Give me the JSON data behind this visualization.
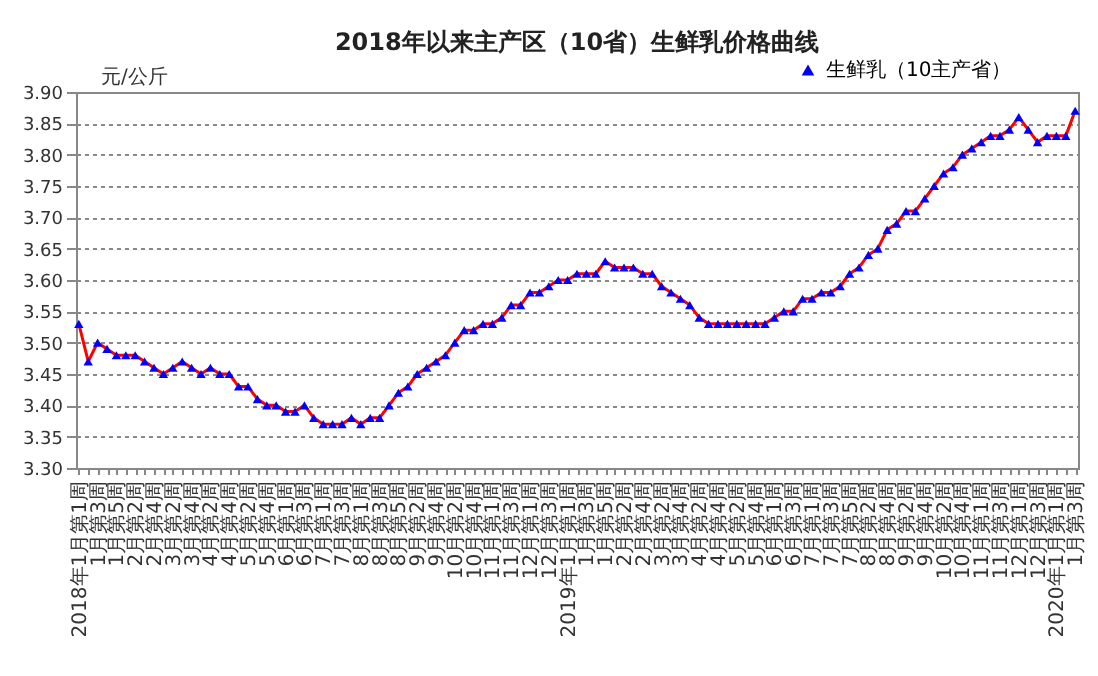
{
  "chart_data": {
    "type": "line",
    "title": "2018年以来主产区（10省）生鲜乳价格曲线",
    "ylabel": "元/公斤",
    "categories": [
      "2018年1月第1周",
      null,
      "1月第3周",
      null,
      "1月第5周",
      null,
      "2月第2周",
      null,
      "2月第4周",
      null,
      "3月第2周",
      null,
      "3月第4周",
      null,
      "4月第2周",
      null,
      "4月第4周",
      null,
      "5月第2周",
      null,
      "5月第4周",
      null,
      "6月第1周",
      null,
      "6月第3周",
      null,
      "7月第1周",
      null,
      "7月第3周",
      null,
      "8月第1周",
      null,
      "8月第3周",
      null,
      "8月第5周",
      null,
      "9月第2周",
      null,
      "9月第4周",
      null,
      "10月第2周",
      null,
      "10月第4周",
      null,
      "11月第1周",
      null,
      "11月第3周",
      null,
      "12月第1周",
      null,
      "12月第3周",
      null,
      "2019年1月第1周",
      null,
      "1月第3周",
      null,
      "1月第5周",
      null,
      "2月第2周",
      null,
      "2月第4周",
      null,
      "3月第2周",
      null,
      "3月第4周",
      null,
      "4月第2周",
      null,
      "4月第4周",
      null,
      "5月第2周",
      null,
      "5月第4周",
      null,
      "6月第1周",
      null,
      "6月第3周",
      null,
      "7月第1周",
      null,
      "7月第3周",
      null,
      "7月第5周",
      null,
      "8月第2周",
      null,
      "8月第4周",
      null,
      "9月第2周",
      null,
      "9月第4周",
      null,
      "10月第2周",
      null,
      "10月第4周",
      null,
      "11月第1周",
      null,
      "11月第3周",
      null,
      "12月第1周",
      null,
      "12月第3周",
      null,
      "2020年1月第1周",
      null,
      "1月第3周"
    ],
    "series": [
      {
        "name": "生鲜乳（10主产省）",
        "color": "#0000ff",
        "values": [
          3.53,
          3.47,
          3.5,
          3.49,
          3.48,
          3.48,
          3.48,
          3.47,
          3.46,
          3.45,
          3.46,
          3.47,
          3.46,
          3.45,
          3.46,
          3.45,
          3.45,
          3.43,
          3.43,
          3.41,
          3.4,
          3.4,
          3.39,
          3.39,
          3.4,
          3.38,
          3.37,
          3.37,
          3.37,
          3.38,
          3.37,
          3.38,
          3.38,
          3.4,
          3.42,
          3.43,
          3.45,
          3.46,
          3.47,
          3.48,
          3.5,
          3.52,
          3.52,
          3.53,
          3.53,
          3.54,
          3.56,
          3.56,
          3.58,
          3.58,
          3.59,
          3.6,
          3.6,
          3.61,
          3.61,
          3.61,
          3.63,
          3.62,
          3.62,
          3.62,
          3.61,
          3.61,
          3.59,
          3.58,
          3.57,
          3.56,
          3.54,
          3.53,
          3.53,
          3.53,
          3.53,
          3.53,
          3.53,
          3.53,
          3.54,
          3.55,
          3.55,
          3.57,
          3.57,
          3.58,
          3.58,
          3.59,
          3.61,
          3.62,
          3.64,
          3.65,
          3.68,
          3.69,
          3.71,
          3.71,
          3.73,
          3.75,
          3.77,
          3.78,
          3.8,
          3.81,
          3.82,
          3.83,
          3.83,
          3.84,
          3.86,
          3.84,
          3.82,
          3.83,
          3.83,
          3.83,
          3.87
        ]
      }
    ],
    "ylim": [
      3.3,
      3.9
    ],
    "yticks": [
      {
        "value": 3.3,
        "label": "3.30"
      },
      3.35,
      {
        "value": 3.4,
        "label": "3.40"
      },
      3.45,
      {
        "value": 3.5,
        "label": "3.50"
      },
      3.55,
      {
        "value": 3.6,
        "label": "3.60"
      },
      3.65,
      {
        "value": 3.7,
        "label": "3.70"
      },
      3.75,
      {
        "value": 3.8,
        "label": "3.80"
      },
      3.85,
      {
        "value": 3.9,
        "label": "3.90"
      }
    ],
    "grid": "y",
    "legend": "top right",
    "marker": "triangle",
    "line_style": "solid"
  }
}
